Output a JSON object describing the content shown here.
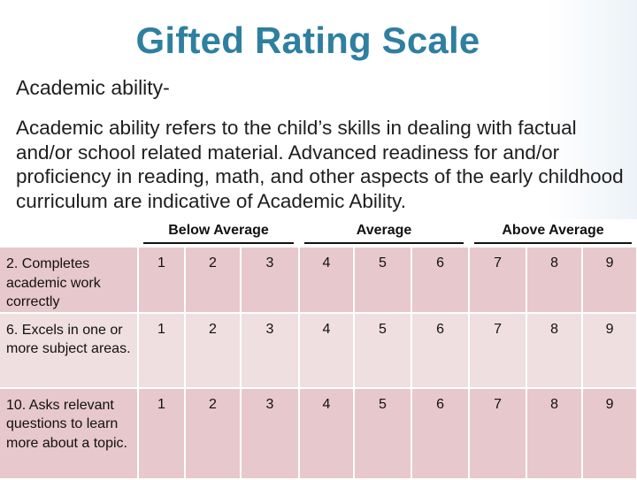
{
  "slide": {
    "title": "Gifted Rating Scale",
    "subtitle": "Academic ability-",
    "paragraph": "Academic ability refers to the child’s skills in dealing with factual and/or school related material. Advanced readiness for and/or proficiency in reading, math, and other aspects of the early childhood curriculum are indicative of Academic Ability."
  },
  "table": {
    "groups": [
      "Below Average",
      "Average",
      "Above Average"
    ],
    "rows": [
      {
        "item": "2. Completes academic work correctly",
        "ratings": [
          "1",
          "2",
          "3",
          "4",
          "5",
          "6",
          "7",
          "8",
          "9"
        ]
      },
      {
        "item": "6. Excels in one or more subject areas.",
        "ratings": [
          "1",
          "2",
          "3",
          "4",
          "5",
          "6",
          "7",
          "8",
          "9"
        ]
      },
      {
        "item": "10. Asks relevant questions to learn more about a topic.",
        "ratings": [
          "1",
          "2",
          "3",
          "4",
          "5",
          "6",
          "7",
          "8",
          "9"
        ]
      }
    ]
  },
  "colors": {
    "title": "#2e7fa0",
    "row_fill": "#e7c8cc",
    "row_fill_alt": "#f0dfe0"
  }
}
